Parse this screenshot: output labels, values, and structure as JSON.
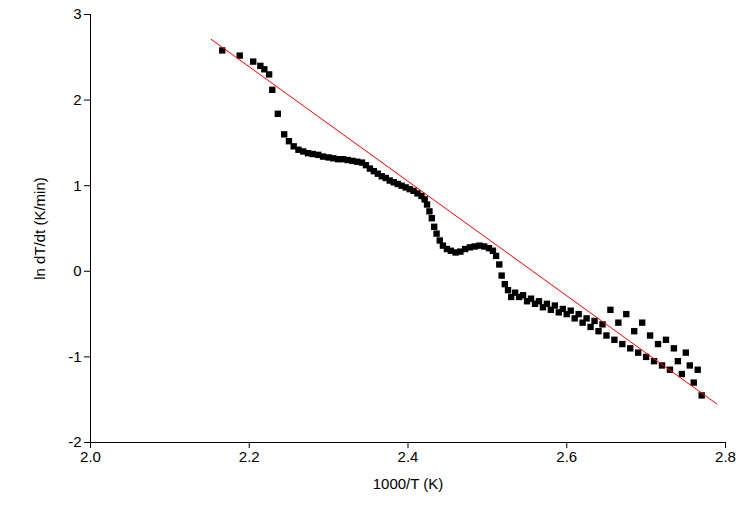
{
  "chart_data": {
    "type": "scatter",
    "x_label": "1000/T (K)",
    "y_label": "ln dT/dt (K/min)",
    "xlim": [
      2.0,
      2.8
    ],
    "ylim": [
      -2,
      3
    ],
    "xticks": [
      {
        "value": 2,
        "label": "2.0"
      },
      2.2,
      2.4,
      2.6,
      2.8
    ],
    "yticks": [
      -2,
      -1,
      0,
      1,
      2,
      3
    ],
    "grid": false,
    "series": [
      {
        "type": "scatter",
        "color": "#000000",
        "marker": "square",
        "x": [
          2.166,
          2.188,
          2.205,
          2.214,
          2.219,
          2.225,
          2.229,
          2.236,
          2.244,
          2.25,
          2.256,
          2.262,
          2.268,
          2.274,
          2.28,
          2.287,
          2.293,
          2.3,
          2.306,
          2.312,
          2.318,
          2.324,
          2.33,
          2.336,
          2.342,
          2.347,
          2.352,
          2.357,
          2.362,
          2.367,
          2.372,
          2.377,
          2.382,
          2.387,
          2.392,
          2.397,
          2.402,
          2.407,
          2.412,
          2.417,
          2.421,
          2.424,
          2.427,
          2.43,
          2.433,
          2.436,
          2.44,
          2.444,
          2.449,
          2.454,
          2.46,
          2.466,
          2.472,
          2.478,
          2.484,
          2.49,
          2.496,
          2.502,
          2.507,
          2.511,
          2.515,
          2.518,
          2.522,
          2.526,
          2.53,
          2.535,
          2.54,
          2.545,
          2.55,
          2.555,
          2.56,
          2.565,
          2.57,
          2.575,
          2.58,
          2.585,
          2.59,
          2.595,
          2.6,
          2.605,
          2.61,
          2.615,
          2.62,
          2.625,
          2.63,
          2.635,
          2.64,
          2.645,
          2.65,
          2.655,
          2.66,
          2.665,
          2.67,
          2.675,
          2.68,
          2.685,
          2.69,
          2.695,
          2.7,
          2.705,
          2.71,
          2.715,
          2.72,
          2.725,
          2.73,
          2.735,
          2.74,
          2.745,
          2.75,
          2.755,
          2.76,
          2.765,
          2.77
        ],
        "values": [
          2.58,
          2.52,
          2.45,
          2.4,
          2.36,
          2.3,
          2.12,
          1.84,
          1.6,
          1.52,
          1.46,
          1.42,
          1.4,
          1.38,
          1.37,
          1.36,
          1.34,
          1.33,
          1.32,
          1.31,
          1.31,
          1.3,
          1.29,
          1.28,
          1.27,
          1.24,
          1.2,
          1.17,
          1.14,
          1.11,
          1.09,
          1.06,
          1.04,
          1.02,
          1.0,
          0.98,
          0.96,
          0.94,
          0.91,
          0.88,
          0.84,
          0.78,
          0.7,
          0.62,
          0.52,
          0.44,
          0.36,
          0.3,
          0.26,
          0.24,
          0.22,
          0.23,
          0.26,
          0.28,
          0.29,
          0.3,
          0.29,
          0.27,
          0.24,
          0.18,
          0.08,
          -0.05,
          -0.15,
          -0.22,
          -0.3,
          -0.25,
          -0.3,
          -0.28,
          -0.35,
          -0.32,
          -0.38,
          -0.35,
          -0.42,
          -0.38,
          -0.45,
          -0.4,
          -0.48,
          -0.44,
          -0.5,
          -0.46,
          -0.55,
          -0.5,
          -0.6,
          -0.55,
          -0.65,
          -0.58,
          -0.7,
          -0.62,
          -0.75,
          -0.45,
          -0.8,
          -0.6,
          -0.85,
          -0.5,
          -0.9,
          -0.7,
          -0.95,
          -0.6,
          -1.0,
          -0.75,
          -1.05,
          -0.85,
          -1.1,
          -0.8,
          -1.15,
          -0.9,
          -1.05,
          -1.2,
          -0.95,
          -1.1,
          -1.3,
          -1.15,
          -1.45
        ]
      },
      {
        "type": "line",
        "color": "#ff0000",
        "line_style": "solid",
        "x": [
          2.152,
          2.789
        ],
        "values": [
          2.71,
          -1.55
        ]
      }
    ]
  }
}
